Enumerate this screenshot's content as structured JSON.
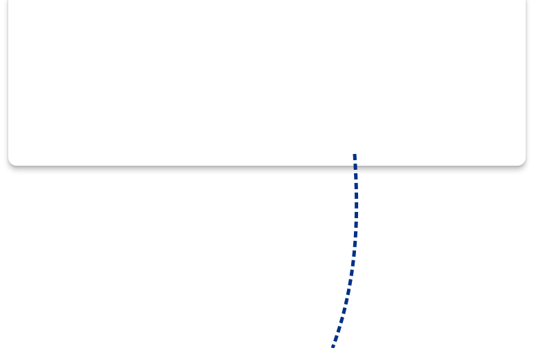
{
  "card": {
    "background": "#ffffff"
  },
  "connector": {
    "style": "dashed",
    "color": "#003087",
    "icon": "dashed-curve-connector"
  }
}
